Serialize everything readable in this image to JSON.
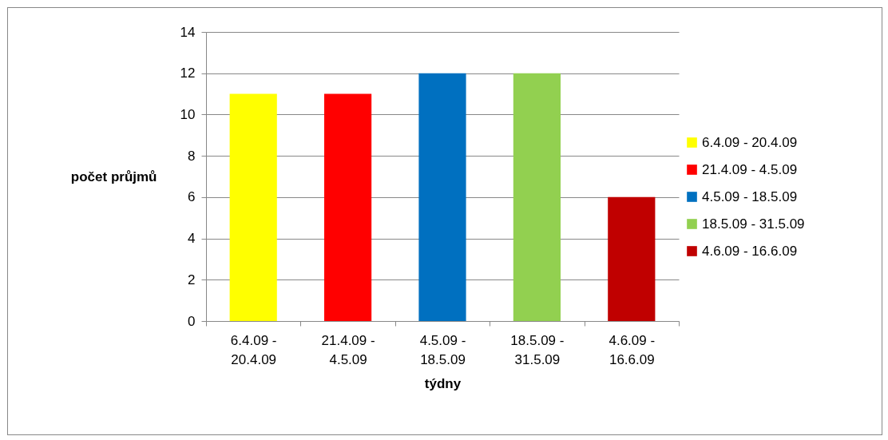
{
  "chart_data": {
    "type": "bar",
    "xlabel": "týdny",
    "ylabel": "počet průjmů",
    "categories": [
      "6.4.09 - 20.4.09",
      "21.4.09 - 4.5.09",
      "4.5.09 - 18.5.09",
      "18.5.09 - 31.5.09",
      "4.6.09 - 16.6.09"
    ],
    "series": [
      {
        "name": "6.4.09 - 20.4.09",
        "color": "#ffff00",
        "values": [
          11,
          null,
          null,
          null,
          null
        ]
      },
      {
        "name": "21.4.09 - 4.5.09",
        "color": "#ff0000",
        "values": [
          null,
          11,
          null,
          null,
          null
        ]
      },
      {
        "name": "4.5.09 - 18.5.09",
        "color": "#0070c0",
        "values": [
          null,
          null,
          12,
          null,
          null
        ]
      },
      {
        "name": "18.5.09 - 31.5.09",
        "color": "#92d050",
        "values": [
          null,
          null,
          null,
          12,
          null
        ]
      },
      {
        "name": "4.6.09 - 16.6.09",
        "color": "#c00000",
        "values": [
          null,
          null,
          null,
          null,
          6
        ]
      }
    ],
    "ylim": [
      0,
      14
    ],
    "yticks": [
      0,
      2,
      4,
      6,
      8,
      10,
      12,
      14
    ],
    "grid": "y",
    "legend": "right"
  }
}
